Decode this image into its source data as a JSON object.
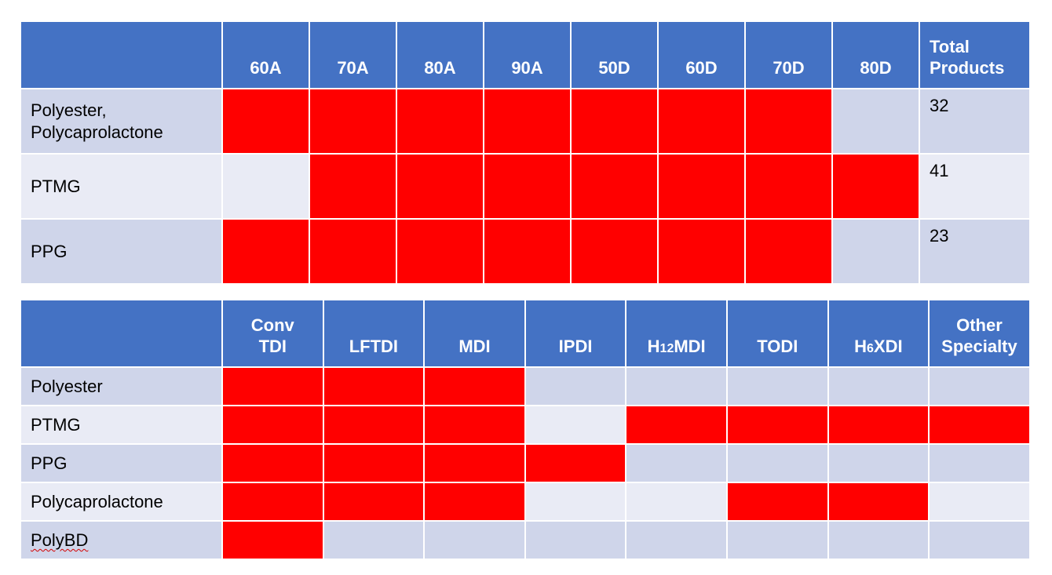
{
  "table1": {
    "columns": [
      "60A",
      "70A",
      "80A",
      "90A",
      "50D",
      "60D",
      "70D",
      "80D"
    ],
    "total_header": [
      "Total",
      "Products"
    ],
    "rows": [
      {
        "label": [
          "Polyester,",
          "Polycaprolactone"
        ],
        "filled": [
          true,
          true,
          true,
          true,
          true,
          true,
          true,
          false
        ],
        "total": "32"
      },
      {
        "label": [
          "PTMG"
        ],
        "filled": [
          false,
          true,
          true,
          true,
          true,
          true,
          true,
          true
        ],
        "total": "41"
      },
      {
        "label": [
          "PPG"
        ],
        "filled": [
          true,
          true,
          true,
          true,
          true,
          true,
          true,
          false
        ],
        "total": "23"
      }
    ]
  },
  "table2": {
    "columns": [
      {
        "lines": [
          "Conv",
          "TDI"
        ]
      },
      {
        "lines": [
          "LFTDI"
        ]
      },
      {
        "lines": [
          "MDI"
        ]
      },
      {
        "lines": [
          "IPDI"
        ]
      },
      {
        "lines": [
          "H",
          "12",
          "MDI"
        ],
        "subscript": true
      },
      {
        "lines": [
          "TODI"
        ]
      },
      {
        "lines": [
          "H",
          "6",
          "XDI"
        ],
        "subscript": true
      },
      {
        "lines": [
          "Other",
          "Specialty"
        ]
      }
    ],
    "rows": [
      {
        "label": "Polyester",
        "filled": [
          true,
          true,
          true,
          false,
          false,
          false,
          false,
          false
        ]
      },
      {
        "label": "PTMG",
        "filled": [
          true,
          true,
          true,
          false,
          true,
          true,
          true,
          true
        ]
      },
      {
        "label": "PPG",
        "filled": [
          true,
          true,
          true,
          true,
          false,
          false,
          false,
          false
        ]
      },
      {
        "label": "Polycaprolactone",
        "filled": [
          true,
          true,
          true,
          false,
          false,
          true,
          true,
          false
        ]
      },
      {
        "label": "PolyBD",
        "filled": [
          true,
          false,
          false,
          false,
          false,
          false,
          false,
          false
        ],
        "spellcheck": true
      }
    ]
  },
  "colors": {
    "header": "#4472C4",
    "filled": "#FF0000",
    "row_odd": "#CFD5EA",
    "row_even": "#E9EBF5"
  }
}
